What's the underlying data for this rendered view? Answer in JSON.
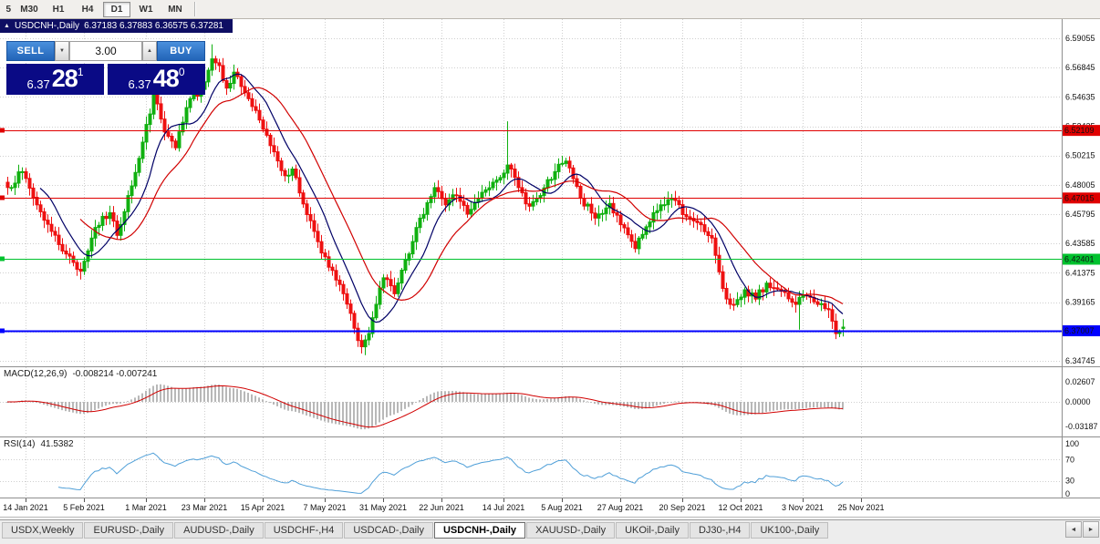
{
  "toolbar": {
    "timeframes": [
      {
        "label": "5",
        "active": false
      },
      {
        "label": "M30",
        "active": false
      },
      {
        "label": "H1",
        "active": false
      },
      {
        "label": "H4",
        "active": false
      },
      {
        "label": "D1",
        "active": true
      },
      {
        "label": "W1",
        "active": false
      },
      {
        "label": "MN",
        "active": false
      }
    ]
  },
  "chart_header": {
    "title": "USDCNH-,Daily",
    "ohlc_text": "6.37183 6.37883 6.36575 6.37281"
  },
  "trade_widget": {
    "sell_label": "SELL",
    "buy_label": "BUY",
    "volume": "3.00",
    "sell_quote": {
      "small": "6.37",
      "big": "28",
      "sup": "1"
    },
    "buy_quote": {
      "small": "6.37",
      "big": "48",
      "sup": "0"
    }
  },
  "icons": {
    "chart_marker": "▲",
    "volume_down": "▼",
    "volume_up": "▲",
    "tab_scroll_left": "◄",
    "tab_scroll_right": "►"
  },
  "chart_data": {
    "type": "candlestick",
    "symbol": "USDCNH-",
    "timeframe": "Daily",
    "current": {
      "open": "6.37183",
      "high": "6.37883",
      "low": "6.36575",
      "close": "6.37281"
    },
    "price_axis_labels": [
      "6.59055",
      "6.56845",
      "6.54635",
      "6.52425",
      "6.50215",
      "6.48005",
      "6.45795",
      "6.43585",
      "6.41375",
      "6.39165",
      "6.36955",
      "6.34745"
    ],
    "date_axis_labels": [
      {
        "text": "14 Jan 2021",
        "i": 5
      },
      {
        "text": "5 Feb 2021",
        "i": 21
      },
      {
        "text": "1 Mar 2021",
        "i": 38
      },
      {
        "text": "23 Mar 2021",
        "i": 54
      },
      {
        "text": "15 Apr 2021",
        "i": 70
      },
      {
        "text": "7 May 2021",
        "i": 87
      },
      {
        "text": "31 May 2021",
        "i": 103
      },
      {
        "text": "22 Jun 2021",
        "i": 119
      },
      {
        "text": "14 Jul 2021",
        "i": 136
      },
      {
        "text": "5 Aug 2021",
        "i": 152
      },
      {
        "text": "27 Aug 2021",
        "i": 168
      },
      {
        "text": "20 Sep 2021",
        "i": 185
      },
      {
        "text": "12 Oct 2021",
        "i": 201
      },
      {
        "text": "3 Nov 2021",
        "i": 218
      },
      {
        "text": "25 Nov 2021",
        "i": 234
      }
    ],
    "levels": [
      {
        "price": 6.52109,
        "label": "6.52109",
        "color": "#e00000",
        "width": 1
      },
      {
        "price": 6.47015,
        "label": "6.47015",
        "color": "#e00000",
        "width": 1
      },
      {
        "price": 6.42401,
        "label": "6.42401",
        "color": "#00c22e",
        "width": 1
      },
      {
        "price": 6.37007,
        "label": "6.37007",
        "color": "#0000ff",
        "width": 2
      }
    ],
    "candle_count": 230,
    "close_anchors": [
      [
        0,
        6.478
      ],
      [
        4,
        6.49
      ],
      [
        8,
        6.465
      ],
      [
        12,
        6.445
      ],
      [
        16,
        6.428
      ],
      [
        20,
        6.415
      ],
      [
        24,
        6.448
      ],
      [
        28,
        6.459
      ],
      [
        30,
        6.442
      ],
      [
        33,
        6.472
      ],
      [
        36,
        6.5
      ],
      [
        40,
        6.548
      ],
      [
        43,
        6.52
      ],
      [
        46,
        6.508
      ],
      [
        50,
        6.545
      ],
      [
        53,
        6.552
      ],
      [
        56,
        6.575
      ],
      [
        58,
        6.57
      ],
      [
        60,
        6.553
      ],
      [
        62,
        6.565
      ],
      [
        66,
        6.545
      ],
      [
        70,
        6.522
      ],
      [
        73,
        6.505
      ],
      [
        76,
        6.487
      ],
      [
        78,
        6.492
      ],
      [
        80,
        6.474
      ],
      [
        84,
        6.445
      ],
      [
        88,
        6.418
      ],
      [
        92,
        6.398
      ],
      [
        95,
        6.372
      ],
      [
        97,
        6.358
      ],
      [
        99,
        6.368
      ],
      [
        101,
        6.39
      ],
      [
        103,
        6.41
      ],
      [
        106,
        6.398
      ],
      [
        110,
        6.428
      ],
      [
        113,
        6.455
      ],
      [
        117,
        6.478
      ],
      [
        120,
        6.465
      ],
      [
        123,
        6.472
      ],
      [
        126,
        6.458
      ],
      [
        129,
        6.47
      ],
      [
        133,
        6.482
      ],
      [
        137,
        6.495
      ],
      [
        140,
        6.478
      ],
      [
        143,
        6.464
      ],
      [
        146,
        6.472
      ],
      [
        150,
        6.49
      ],
      [
        153,
        6.498
      ],
      [
        157,
        6.47
      ],
      [
        161,
        6.455
      ],
      [
        165,
        6.466
      ],
      [
        168,
        6.45
      ],
      [
        172,
        6.432
      ],
      [
        176,
        6.452
      ],
      [
        179,
        6.465
      ],
      [
        182,
        6.47
      ],
      [
        186,
        6.456
      ],
      [
        190,
        6.45
      ],
      [
        193,
        6.44
      ],
      [
        196,
        6.402
      ],
      [
        198,
        6.39
      ],
      [
        202,
        6.401
      ],
      [
        205,
        6.394
      ],
      [
        208,
        6.406
      ],
      [
        212,
        6.4
      ],
      [
        216,
        6.39
      ],
      [
        218,
        6.397
      ],
      [
        222,
        6.39
      ],
      [
        225,
        6.386
      ],
      [
        227,
        6.368
      ],
      [
        229,
        6.373
      ]
    ],
    "wick_spikes": [
      {
        "i": 56,
        "high": 6.586
      },
      {
        "i": 137,
        "high": 6.528
      },
      {
        "i": 97,
        "low": 6.353
      },
      {
        "i": 217,
        "low": 6.371
      },
      {
        "i": 227,
        "low": 6.3638
      }
    ],
    "up_color": "#10b010",
    "down_color": "#ee1111",
    "ma_fast_color": "#000066",
    "ma_slow_color": "#d10000",
    "macd": {
      "label": "MACD(12,26,9)",
      "values": "-0.008214 -0.007241",
      "fast": 12,
      "slow": 26,
      "signal": 9,
      "axis_labels": [
        "0.02607",
        "0.0000",
        "-0.03187"
      ],
      "histogram_color": "#b8b8b8",
      "signal_color": "#d10000"
    },
    "rsi": {
      "label": "RSI(14)",
      "value": "41.5382",
      "period": 14,
      "axis_labels": [
        "100",
        "70",
        "30",
        "0"
      ],
      "levels": [
        70,
        30
      ],
      "line_color": "#4f9fd8"
    }
  },
  "tabs": [
    {
      "label": "USDX,Weekly",
      "active": false
    },
    {
      "label": "EURUSD-,Daily",
      "active": false
    },
    {
      "label": "AUDUSD-,Daily",
      "active": false
    },
    {
      "label": "USDCHF-,H4",
      "active": false
    },
    {
      "label": "USDCAD-,Daily",
      "active": false
    },
    {
      "label": "USDCNH-,Daily",
      "active": true
    },
    {
      "label": "XAUUSD-,Daily",
      "active": false
    },
    {
      "label": "UKOil-,Daily",
      "active": false
    },
    {
      "label": "DJ30-,H4",
      "active": false
    },
    {
      "label": "UK100-,Daily",
      "active": false
    }
  ]
}
